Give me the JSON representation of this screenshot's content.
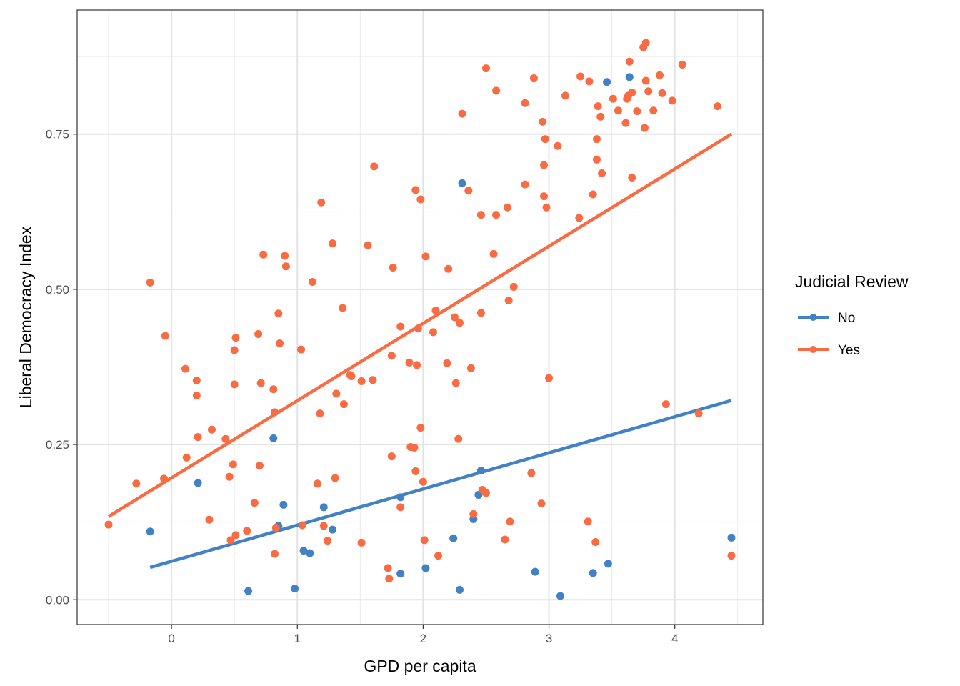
{
  "colors": {
    "no": "#4281c4",
    "yes": "#f96b43"
  },
  "chart_data": {
    "type": "scatter",
    "xlabel": "GPD per capita",
    "ylabel": "Liberal Democracy Index",
    "xlim": [
      -0.75,
      4.7
    ],
    "ylim": [
      -0.04,
      0.95
    ],
    "x_ticks": [
      0,
      1,
      2,
      3,
      4
    ],
    "x_tick_labels": [
      "0",
      "1",
      "2",
      "3",
      "4"
    ],
    "y_ticks": [
      0,
      0.25,
      0.5,
      0.75
    ],
    "y_tick_labels": [
      "0.00",
      "0.25",
      "0.50",
      "0.75"
    ],
    "grid": true,
    "legend": {
      "title": "Judicial Review",
      "position": "right"
    },
    "series": [
      {
        "name": "No",
        "color": "#4281c4",
        "points": [
          [
            -0.17,
            0.11
          ],
          [
            0.21,
            0.188
          ],
          [
            0.81,
            0.26
          ],
          [
            0.85,
            0.119
          ],
          [
            0.89,
            0.153
          ],
          [
            0.61,
            0.014
          ],
          [
            0.98,
            0.018
          ],
          [
            1.05,
            0.079
          ],
          [
            1.1,
            0.075
          ],
          [
            1.21,
            0.149
          ],
          [
            1.28,
            0.113
          ],
          [
            1.82,
            0.042
          ],
          [
            1.82,
            0.165
          ],
          [
            2.02,
            0.051
          ],
          [
            2.24,
            0.099
          ],
          [
            2.29,
            0.016
          ],
          [
            2.31,
            0.671
          ],
          [
            2.4,
            0.13
          ],
          [
            2.44,
            0.169
          ],
          [
            2.46,
            0.208
          ],
          [
            2.89,
            0.045
          ],
          [
            3.09,
            0.006
          ],
          [
            3.35,
            0.043
          ],
          [
            3.46,
            0.834
          ],
          [
            3.47,
            0.058
          ],
          [
            3.64,
            0.842
          ],
          [
            4.45,
            0.1
          ]
        ],
        "fit": [
          [
            -0.17,
            0.052
          ],
          [
            4.45,
            0.321
          ]
        ]
      },
      {
        "name": "Yes",
        "color": "#f96b43",
        "points": [
          [
            -0.5,
            0.121
          ],
          [
            -0.28,
            0.187
          ],
          [
            -0.17,
            0.511
          ],
          [
            -0.06,
            0.195
          ],
          [
            -0.05,
            0.425
          ],
          [
            0.11,
            0.372
          ],
          [
            0.12,
            0.229
          ],
          [
            0.2,
            0.353
          ],
          [
            0.2,
            0.329
          ],
          [
            0.21,
            0.262
          ],
          [
            0.3,
            0.129
          ],
          [
            0.32,
            0.274
          ],
          [
            0.43,
            0.259
          ],
          [
            0.46,
            0.198
          ],
          [
            0.47,
            0.096
          ],
          [
            0.49,
            0.218
          ],
          [
            0.5,
            0.347
          ],
          [
            0.5,
            0.402
          ],
          [
            0.51,
            0.422
          ],
          [
            0.51,
            0.104
          ],
          [
            0.6,
            0.111
          ],
          [
            0.66,
            0.156
          ],
          [
            0.69,
            0.428
          ],
          [
            0.7,
            0.216
          ],
          [
            0.71,
            0.349
          ],
          [
            0.73,
            0.556
          ],
          [
            0.81,
            0.339
          ],
          [
            0.82,
            0.302
          ],
          [
            0.82,
            0.074
          ],
          [
            0.83,
            0.116
          ],
          [
            0.85,
            0.461
          ],
          [
            0.86,
            0.413
          ],
          [
            0.9,
            0.554
          ],
          [
            0.91,
            0.537
          ],
          [
            1.03,
            0.403
          ],
          [
            1.04,
            0.12
          ],
          [
            1.12,
            0.512
          ],
          [
            1.16,
            0.187
          ],
          [
            1.18,
            0.3
          ],
          [
            1.19,
            0.64
          ],
          [
            1.21,
            0.119
          ],
          [
            1.24,
            0.095
          ],
          [
            1.28,
            0.574
          ],
          [
            1.3,
            0.196
          ],
          [
            1.31,
            0.332
          ],
          [
            1.36,
            0.47
          ],
          [
            1.37,
            0.315
          ],
          [
            1.42,
            0.362
          ],
          [
            1.43,
            0.36
          ],
          [
            1.51,
            0.352
          ],
          [
            1.51,
            0.092
          ],
          [
            1.56,
            0.571
          ],
          [
            1.6,
            0.354
          ],
          [
            1.61,
            0.698
          ],
          [
            1.72,
            0.051
          ],
          [
            1.73,
            0.034
          ],
          [
            1.75,
            0.231
          ],
          [
            1.75,
            0.393
          ],
          [
            1.76,
            0.535
          ],
          [
            1.82,
            0.44
          ],
          [
            1.82,
            0.149
          ],
          [
            1.89,
            0.382
          ],
          [
            1.9,
            0.246
          ],
          [
            1.93,
            0.245
          ],
          [
            1.94,
            0.66
          ],
          [
            1.94,
            0.207
          ],
          [
            1.95,
            0.378
          ],
          [
            1.96,
            0.437
          ],
          [
            1.98,
            0.645
          ],
          [
            1.98,
            0.277
          ],
          [
            2.0,
            0.19
          ],
          [
            2.01,
            0.096
          ],
          [
            2.02,
            0.553
          ],
          [
            2.08,
            0.431
          ],
          [
            2.1,
            0.466
          ],
          [
            2.12,
            0.071
          ],
          [
            2.19,
            0.381
          ],
          [
            2.2,
            0.533
          ],
          [
            2.25,
            0.455
          ],
          [
            2.26,
            0.349
          ],
          [
            2.28,
            0.259
          ],
          [
            2.29,
            0.446
          ],
          [
            2.31,
            0.783
          ],
          [
            2.36,
            0.659
          ],
          [
            2.38,
            0.373
          ],
          [
            2.4,
            0.138
          ],
          [
            2.46,
            0.462
          ],
          [
            2.46,
            0.62
          ],
          [
            2.47,
            0.177
          ],
          [
            2.5,
            0.172
          ],
          [
            2.5,
            0.856
          ],
          [
            2.56,
            0.557
          ],
          [
            2.58,
            0.82
          ],
          [
            2.58,
            0.62
          ],
          [
            2.65,
            0.097
          ],
          [
            2.67,
            0.632
          ],
          [
            2.68,
            0.482
          ],
          [
            2.69,
            0.126
          ],
          [
            2.72,
            0.504
          ],
          [
            2.81,
            0.8
          ],
          [
            2.81,
            0.669
          ],
          [
            2.86,
            0.204
          ],
          [
            2.88,
            0.84
          ],
          [
            2.94,
            0.155
          ],
          [
            2.95,
            0.77
          ],
          [
            2.96,
            0.7
          ],
          [
            2.96,
            0.65
          ],
          [
            2.97,
            0.742
          ],
          [
            2.98,
            0.632
          ],
          [
            3.0,
            0.357
          ],
          [
            3.07,
            0.731
          ],
          [
            3.13,
            0.812
          ],
          [
            3.24,
            0.615
          ],
          [
            3.25,
            0.843
          ],
          [
            3.31,
            0.126
          ],
          [
            3.32,
            0.835
          ],
          [
            3.35,
            0.653
          ],
          [
            3.37,
            0.093
          ],
          [
            3.38,
            0.742
          ],
          [
            3.38,
            0.709
          ],
          [
            3.39,
            0.795
          ],
          [
            3.41,
            0.778
          ],
          [
            3.42,
            0.687
          ],
          [
            3.51,
            0.807
          ],
          [
            3.55,
            0.788
          ],
          [
            3.61,
            0.768
          ],
          [
            3.62,
            0.807
          ],
          [
            3.63,
            0.812
          ],
          [
            3.64,
            0.867
          ],
          [
            3.66,
            0.817
          ],
          [
            3.66,
            0.68
          ],
          [
            3.7,
            0.787
          ],
          [
            3.75,
            0.89
          ],
          [
            3.76,
            0.76
          ],
          [
            3.77,
            0.897
          ],
          [
            3.77,
            0.836
          ],
          [
            3.79,
            0.819
          ],
          [
            3.83,
            0.788
          ],
          [
            3.88,
            0.845
          ],
          [
            3.9,
            0.816
          ],
          [
            3.93,
            0.315
          ],
          [
            3.98,
            0.804
          ],
          [
            4.06,
            0.862
          ],
          [
            4.19,
            0.3
          ],
          [
            4.34,
            0.795
          ],
          [
            4.45,
            0.071
          ]
        ],
        "fit": [
          [
            -0.5,
            0.134
          ],
          [
            4.45,
            0.75
          ]
        ]
      }
    ]
  }
}
